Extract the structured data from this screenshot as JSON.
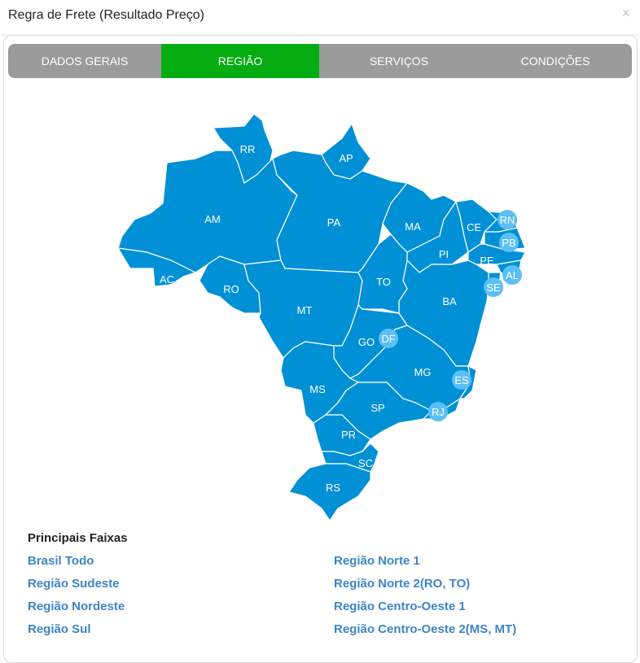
{
  "dialog": {
    "title": "Regra de Frete (Resultado Preço)",
    "close_label": "×"
  },
  "tabs": [
    {
      "label": "DADOS GERAIS",
      "active": false
    },
    {
      "label": "REGIÃO",
      "active": true
    },
    {
      "label": "SERVIÇOS",
      "active": false
    },
    {
      "label": "CONDIÇÕES",
      "active": false
    }
  ],
  "colors": {
    "active_tab": "#06ad12",
    "tab_bar": "#9b9b9b",
    "state_fill": "#0090d6",
    "small_state_marker": "#5bc0f5",
    "link": "#3d85c6"
  },
  "map": {
    "states": [
      "RR",
      "AP",
      "AM",
      "AC",
      "RO",
      "PA",
      "MT",
      "MA",
      "PI",
      "CE",
      "RN",
      "PB",
      "PE",
      "AL",
      "SE",
      "BA",
      "TO",
      "GO",
      "DF",
      "MG",
      "ES",
      "MS",
      "SP",
      "RJ",
      "PR",
      "SC",
      "RS"
    ]
  },
  "faixas": {
    "heading": "Principais Faixas",
    "left": [
      "Brasil Todo",
      "Região Sudeste",
      "Região Nordeste",
      "Região Sul"
    ],
    "right": [
      "Região Norte 1",
      "Região Norte 2(RO, TO)",
      "Região Centro-Oeste 1",
      "Região Centro-Oeste 2(MS, MT)"
    ]
  }
}
